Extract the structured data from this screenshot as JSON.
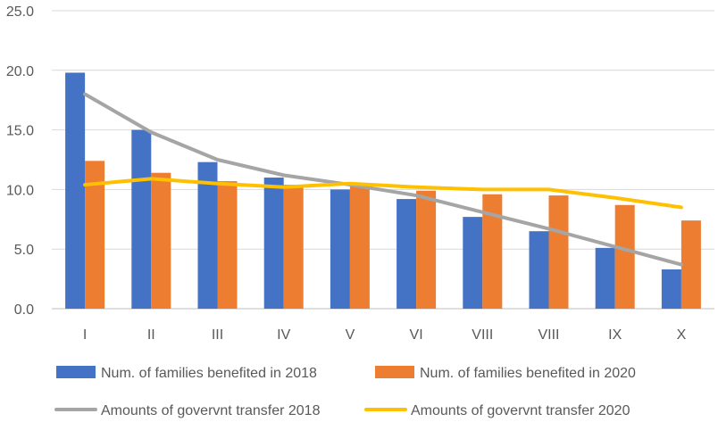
{
  "chart_data": {
    "type": "bar",
    "categories": [
      "I",
      "II",
      "III",
      "IV",
      "V",
      "VI",
      "VIII",
      "VIII",
      "IX",
      "X"
    ],
    "ylim": [
      0,
      25
    ],
    "yticks": [
      "0.0",
      "5.0",
      "10.0",
      "15.0",
      "20.0",
      "25.0"
    ],
    "grid": true,
    "legend_position": "bottom",
    "series": [
      {
        "name": "Num. of families benefited in 2018",
        "kind": "bar",
        "color": "#4472C4",
        "values": [
          19.8,
          15.0,
          12.3,
          11.0,
          10.0,
          9.2,
          7.7,
          6.5,
          5.1,
          3.3
        ]
      },
      {
        "name": "Num. of families benefited in 2020",
        "kind": "bar",
        "color": "#ED7D31",
        "values": [
          12.4,
          11.4,
          10.7,
          10.4,
          10.3,
          9.9,
          9.6,
          9.5,
          8.7,
          7.4
        ]
      },
      {
        "name": "Amounts of govervnt transfer 2018",
        "kind": "line",
        "color": "#A5A5A5",
        "values": [
          18.0,
          14.8,
          12.5,
          11.2,
          10.4,
          9.5,
          8.1,
          6.7,
          5.2,
          3.7
        ]
      },
      {
        "name": "Amounts of govervnt transfer 2020",
        "kind": "line",
        "color": "#FFC000",
        "values": [
          10.4,
          10.9,
          10.5,
          10.2,
          10.5,
          10.2,
          10.0,
          10.0,
          9.3,
          8.5
        ]
      }
    ]
  }
}
